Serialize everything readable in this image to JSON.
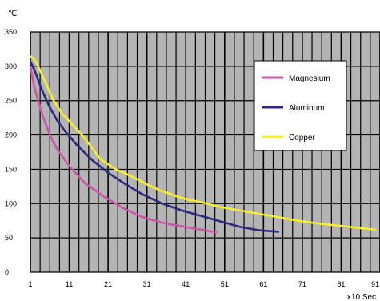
{
  "chart_data": {
    "type": "line",
    "ylabel": "℃",
    "xlabel": "x10 Sec",
    "xlim": [
      1,
      91
    ],
    "ylim": [
      0,
      350
    ],
    "x_ticks": [
      1,
      11,
      21,
      31,
      41,
      51,
      61,
      71,
      81,
      91
    ],
    "x_tick_labels": [
      "1",
      "11",
      "21",
      "31",
      "41",
      "51",
      "61",
      "71",
      "81",
      "91"
    ],
    "y_ticks": [
      0,
      50,
      100,
      150,
      200,
      250,
      300,
      350
    ],
    "y_tick_labels": [
      "0",
      "50",
      "100",
      "150",
      "200",
      "250",
      "300",
      "350"
    ],
    "grid": true,
    "legend_position": "top-right",
    "plot_background": "#b4b4b4",
    "grid_color": "#000000",
    "series": [
      {
        "name": "Magnesium",
        "color": "#cc55aa",
        "x": [
          1,
          2,
          4,
          6,
          8,
          11,
          15,
          20,
          25,
          30,
          35,
          40,
          45,
          49
        ],
        "y": [
          300,
          270,
          230,
          200,
          178,
          155,
          130,
          110,
          93,
          80,
          72,
          67,
          62,
          58
        ]
      },
      {
        "name": "Aluminum",
        "color": "#2b2a7c",
        "x": [
          1,
          2,
          4,
          6,
          8,
          10,
          13,
          17,
          21,
          25,
          30,
          35,
          40,
          45,
          50,
          55,
          60,
          65
        ],
        "y": [
          307,
          295,
          265,
          240,
          220,
          205,
          185,
          163,
          145,
          130,
          113,
          100,
          90,
          82,
          74,
          66,
          61,
          59
        ]
      },
      {
        "name": "Copper",
        "color": "#f7ef2a",
        "x": [
          1,
          2,
          3,
          5,
          7,
          9,
          11,
          15,
          19,
          23,
          27,
          31,
          35,
          40,
          45,
          50,
          55,
          60,
          65,
          70,
          75,
          80,
          85,
          90
        ],
        "y": [
          315,
          310,
          300,
          275,
          250,
          232,
          220,
          195,
          165,
          150,
          140,
          128,
          118,
          108,
          102,
          95,
          90,
          85,
          80,
          75,
          71,
          68,
          65,
          62
        ]
      }
    ]
  }
}
